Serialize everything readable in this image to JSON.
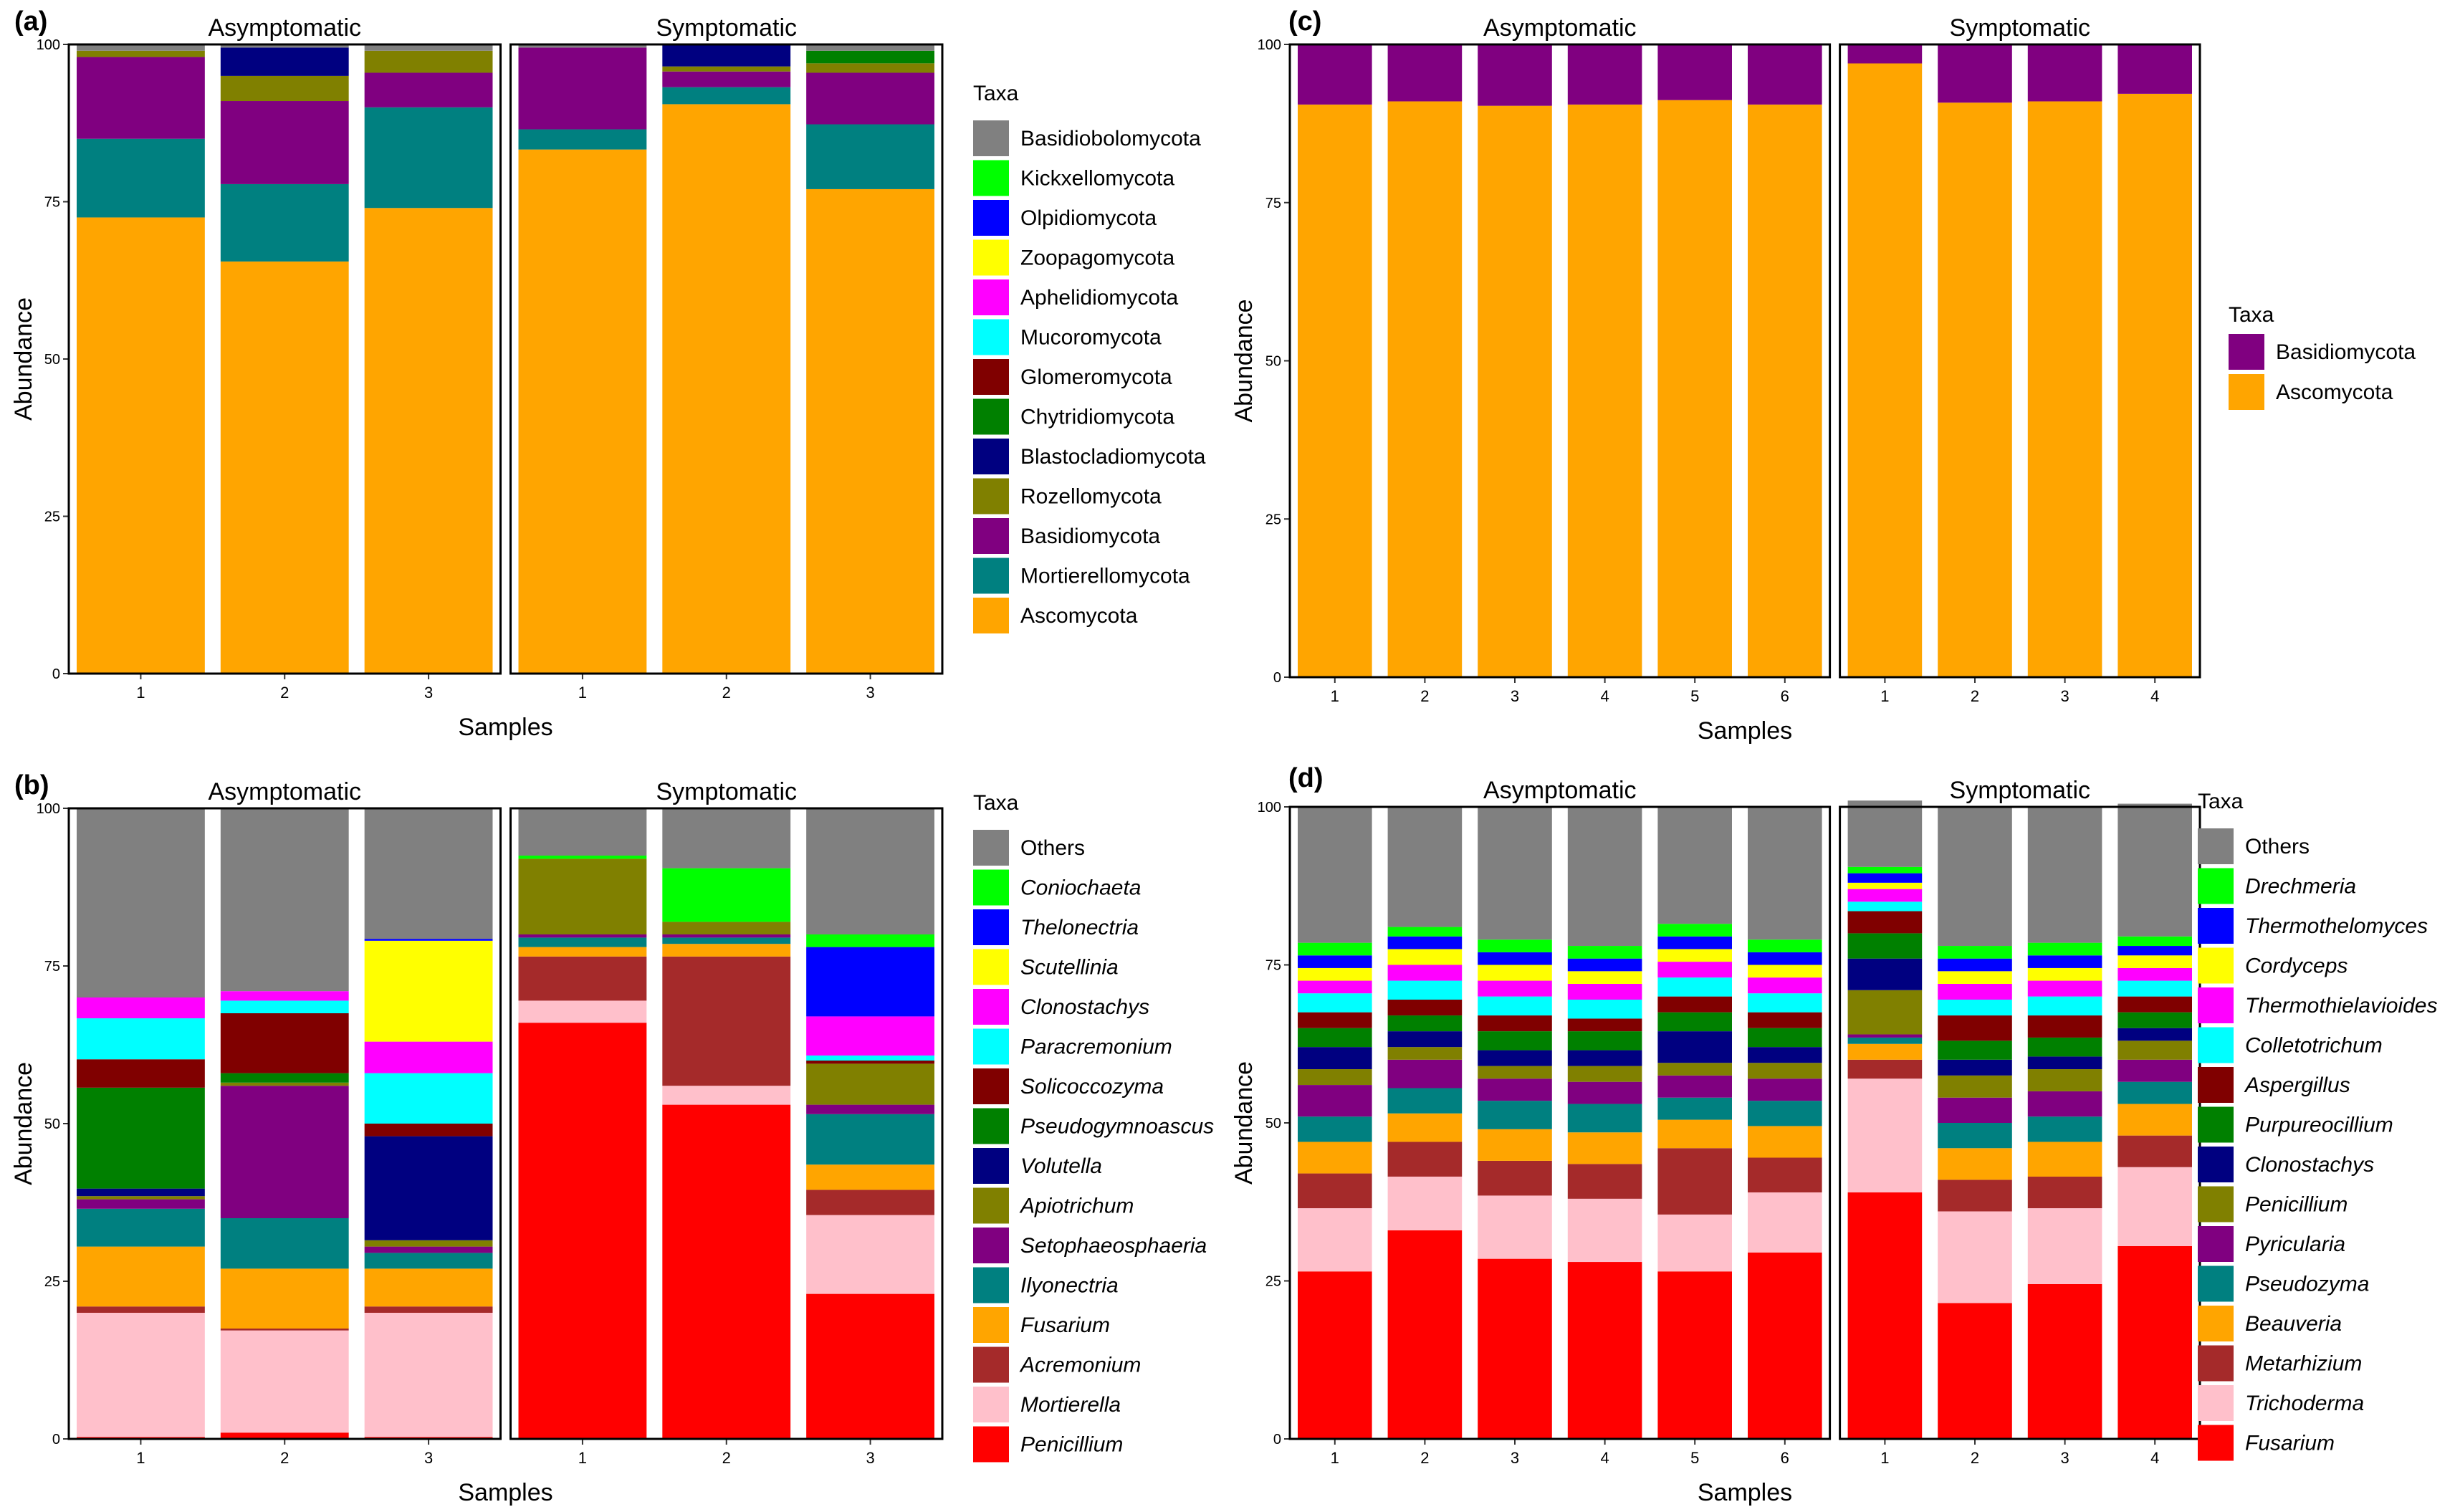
{
  "figure": {
    "colors": {
      "panel_border": "#000000",
      "background": "#ffffff"
    }
  },
  "chart_data": [
    {
      "id": "a",
      "panel_label": "(a)",
      "type": "bar",
      "stacked": true,
      "title": "",
      "xlabel": "Samples",
      "ylabel": "Abundance",
      "ylim": [
        0,
        100
      ],
      "yticks": [
        "0",
        "25",
        "50",
        "75",
        "100"
      ],
      "facets": [
        {
          "title": "Asymptomatic",
          "samples": [
            "1",
            "2",
            "3"
          ]
        },
        {
          "title": "Symptomatic",
          "samples": [
            "1",
            "2",
            "3"
          ]
        }
      ],
      "legend_title": "Taxa",
      "legend_italic": false,
      "legend": [
        {
          "name": "Basidiobolomycota",
          "color": "#808080"
        },
        {
          "name": "Kickxellomycota",
          "color": "#00FF00"
        },
        {
          "name": "Olpidiomycota",
          "color": "#0000FF"
        },
        {
          "name": "Zoopagomycota",
          "color": "#FFFF00"
        },
        {
          "name": "Aphelidiomycota",
          "color": "#FF00FF"
        },
        {
          "name": "Mucoromycota",
          "color": "#00FFFF"
        },
        {
          "name": "Glomeromycota",
          "color": "#800000"
        },
        {
          "name": "Chytridiomycota",
          "color": "#008000"
        },
        {
          "name": "Blastocladiomycota",
          "color": "#000080"
        },
        {
          "name": "Rozellomycota",
          "color": "#808000"
        },
        {
          "name": "Basidiomycota",
          "color": "#800080"
        },
        {
          "name": "Mortierellomycota",
          "color": "#008080"
        },
        {
          "name": "Ascomycota",
          "color": "#FFA500"
        }
      ],
      "stack_order": [
        "Ascomycota",
        "Mortierellomycota",
        "Basidiomycota",
        "Rozellomycota",
        "Blastocladiomycota",
        "Chytridiomycota",
        "Glomeromycota",
        "Mucoromycota",
        "Aphelidiomycota",
        "Zoopagomycota",
        "Olpidiomycota",
        "Kickxellomycota",
        "Basidiobolomycota"
      ],
      "values": [
        [
          {
            "Ascomycota": 72.5,
            "Mortierellomycota": 12.5,
            "Basidiomycota": 13.0,
            "Rozellomycota": 1.0,
            "Basidiobolomycota": 1.0
          },
          {
            "Ascomycota": 65.5,
            "Mortierellomycota": 12.3,
            "Basidiomycota": 13.2,
            "Rozellomycota": 4.0,
            "Blastocladiomycota": 4.5,
            "Basidiobolomycota": 0.5
          },
          {
            "Ascomycota": 74.0,
            "Mortierellomycota": 16.0,
            "Basidiomycota": 5.5,
            "Rozellomycota": 3.5,
            "Basidiobolomycota": 1.0
          }
        ],
        [
          {
            "Ascomycota": 83.3,
            "Mortierellomycota": 3.2,
            "Basidiomycota": 13.0,
            "Basidiobolomycota": 0.5
          },
          {
            "Ascomycota": 90.5,
            "Mortierellomycota": 2.7,
            "Basidiomycota": 2.5,
            "Rozellomycota": 0.8,
            "Blastocladiomycota": 3.5
          },
          {
            "Ascomycota": 77.0,
            "Mortierellomycota": 10.3,
            "Basidiomycota": 8.2,
            "Rozellomycota": 1.5,
            "Chytridiomycota": 2.0,
            "Basidiobolomycota": 1.0
          }
        ]
      ]
    },
    {
      "id": "b",
      "panel_label": "(b)",
      "type": "bar",
      "stacked": true,
      "title": "",
      "xlabel": "Samples",
      "ylabel": "Abundance",
      "ylim": [
        0,
        100
      ],
      "yticks": [
        "0",
        "25",
        "50",
        "75",
        "100"
      ],
      "facets": [
        {
          "title": "Asymptomatic",
          "samples": [
            "1",
            "2",
            "3"
          ]
        },
        {
          "title": "Symptomatic",
          "samples": [
            "1",
            "2",
            "3"
          ]
        }
      ],
      "legend_title": "Taxa",
      "legend_italic": true,
      "legend": [
        {
          "name": "Others",
          "color": "#808080",
          "italic": false
        },
        {
          "name": "Coniochaeta",
          "color": "#00FF00"
        },
        {
          "name": "Thelonectria",
          "color": "#0000FF"
        },
        {
          "name": "Scutellinia",
          "color": "#FFFF00"
        },
        {
          "name": "Clonostachys",
          "color": "#FF00FF"
        },
        {
          "name": "Paracremonium",
          "color": "#00FFFF"
        },
        {
          "name": "Solicoccozyma",
          "color": "#800000"
        },
        {
          "name": "Pseudogymnoascus",
          "color": "#008000"
        },
        {
          "name": "Volutella",
          "color": "#000080"
        },
        {
          "name": "Apiotrichum",
          "color": "#808000"
        },
        {
          "name": "Setophaeosphaeria",
          "color": "#800080"
        },
        {
          "name": "Ilyonectria",
          "color": "#008080"
        },
        {
          "name": "Fusarium",
          "color": "#FFA500"
        },
        {
          "name": "Acremonium",
          "color": "#A52A2A"
        },
        {
          "name": "Mortierella",
          "color": "#FFC0CB"
        },
        {
          "name": "Penicillium",
          "color": "#FF0000"
        }
      ],
      "stack_order": [
        "Penicillium",
        "Mortierella",
        "Acremonium",
        "Fusarium",
        "Ilyonectria",
        "Setophaeosphaeria",
        "Apiotrichum",
        "Volutella",
        "Pseudogymnoascus",
        "Solicoccozyma",
        "Paracremonium",
        "Clonostachys",
        "Scutellinia",
        "Thelonectria",
        "Coniochaeta",
        "Others"
      ],
      "values": [
        [
          {
            "Penicillium": 0.3,
            "Mortierella": 19.7,
            "Acremonium": 1.0,
            "Fusarium": 9.5,
            "Ilyonectria": 6.0,
            "Setophaeosphaeria": 1.5,
            "Apiotrichum": 0.5,
            "Volutella": 1.2,
            "Pseudogymnoascus": 16.0,
            "Solicoccozyma": 4.5,
            "Paracremonium": 6.5,
            "Clonostachys": 3.3,
            "Others": 30.0
          },
          {
            "Penicillium": 1.0,
            "Mortierella": 16.2,
            "Acremonium": 0.3,
            "Fusarium": 9.5,
            "Ilyonectria": 8.0,
            "Setophaeosphaeria": 21.0,
            "Apiotrichum": 0.5,
            "Pseudogymnoascus": 1.5,
            "Solicoccozyma": 9.5,
            "Paracremonium": 2.0,
            "Clonostachys": 1.5,
            "Others": 29.0
          },
          {
            "Penicillium": 0.3,
            "Mortierella": 19.7,
            "Acremonium": 1.0,
            "Fusarium": 6.0,
            "Ilyonectria": 2.5,
            "Setophaeosphaeria": 1.0,
            "Apiotrichum": 1.0,
            "Volutella": 16.5,
            "Solicoccozyma": 2.0,
            "Paracremonium": 8.0,
            "Clonostachys": 5.0,
            "Scutellinia": 16.0,
            "Thelonectria": 0.3,
            "Others": 20.7
          }
        ],
        [
          {
            "Penicillium": 66.0,
            "Mortierella": 3.5,
            "Acremonium": 7.0,
            "Fusarium": 1.5,
            "Ilyonectria": 1.5,
            "Setophaeosphaeria": 0.5,
            "Apiotrichum": 12.0,
            "Coniochaeta": 0.5,
            "Others": 7.5
          },
          {
            "Penicillium": 53.0,
            "Mortierella": 3.0,
            "Acremonium": 20.5,
            "Fusarium": 2.0,
            "Ilyonectria": 1.0,
            "Setophaeosphaeria": 0.5,
            "Apiotrichum": 2.0,
            "Coniochaeta": 8.5,
            "Others": 9.5
          },
          {
            "Penicillium": 23.0,
            "Mortierella": 12.5,
            "Acremonium": 4.0,
            "Fusarium": 4.0,
            "Ilyonectria": 8.0,
            "Setophaeosphaeria": 1.5,
            "Apiotrichum": 6.5,
            "Solicoccozyma": 0.5,
            "Paracremonium": 0.8,
            "Clonostachys": 6.2,
            "Thelonectria": 11.0,
            "Coniochaeta": 2.0,
            "Others": 20.0
          }
        ]
      ]
    },
    {
      "id": "c",
      "panel_label": "(c)",
      "type": "bar",
      "stacked": true,
      "title": "",
      "xlabel": "Samples",
      "ylabel": "Abundance",
      "ylim": [
        0,
        100
      ],
      "yticks": [
        "0",
        "25",
        "50",
        "75",
        "100"
      ],
      "facets": [
        {
          "title": "Asymptomatic",
          "samples": [
            "1",
            "2",
            "3",
            "4",
            "5",
            "6"
          ]
        },
        {
          "title": "Symptomatic",
          "samples": [
            "1",
            "2",
            "3",
            "4"
          ]
        }
      ],
      "legend_title": "Taxa",
      "legend_italic": false,
      "legend": [
        {
          "name": "Basidiomycota",
          "color": "#800080"
        },
        {
          "name": "Ascomycota",
          "color": "#FFA500"
        }
      ],
      "stack_order": [
        "Ascomycota",
        "Basidiomycota"
      ],
      "values": [
        [
          {
            "Ascomycota": 90.5,
            "Basidiomycota": 9.5
          },
          {
            "Ascomycota": 91.0,
            "Basidiomycota": 9.0
          },
          {
            "Ascomycota": 90.3,
            "Basidiomycota": 9.7
          },
          {
            "Ascomycota": 90.5,
            "Basidiomycota": 9.5
          },
          {
            "Ascomycota": 91.2,
            "Basidiomycota": 8.8
          },
          {
            "Ascomycota": 90.5,
            "Basidiomycota": 9.5
          }
        ],
        [
          {
            "Ascomycota": 97.0,
            "Basidiomycota": 3.0
          },
          {
            "Ascomycota": 90.8,
            "Basidiomycota": 9.2
          },
          {
            "Ascomycota": 91.0,
            "Basidiomycota": 9.0
          },
          {
            "Ascomycota": 92.2,
            "Basidiomycota": 7.8
          }
        ]
      ]
    },
    {
      "id": "d",
      "panel_label": "(d)",
      "type": "bar",
      "stacked": true,
      "title": "",
      "xlabel": "Samples",
      "ylabel": "Abundance",
      "ylim": [
        0,
        100
      ],
      "yticks": [
        "0",
        "25",
        "50",
        "75",
        "100"
      ],
      "facets": [
        {
          "title": "Asymptomatic",
          "samples": [
            "1",
            "2",
            "3",
            "4",
            "5",
            "6"
          ]
        },
        {
          "title": "Symptomatic",
          "samples": [
            "1",
            "2",
            "3",
            "4"
          ]
        }
      ],
      "legend_title": "Taxa",
      "legend_italic": true,
      "legend": [
        {
          "name": "Others",
          "color": "#808080",
          "italic": false
        },
        {
          "name": "Drechmeria",
          "color": "#00FF00"
        },
        {
          "name": "Thermothelomyces",
          "color": "#0000FF"
        },
        {
          "name": "Cordyceps",
          "color": "#FFFF00"
        },
        {
          "name": "Thermothielavioides",
          "color": "#FF00FF"
        },
        {
          "name": "Colletotrichum",
          "color": "#00FFFF"
        },
        {
          "name": "Aspergillus",
          "color": "#800000"
        },
        {
          "name": "Purpureocillium",
          "color": "#008000"
        },
        {
          "name": "Clonostachys",
          "color": "#000080"
        },
        {
          "name": "Penicillium",
          "color": "#808000"
        },
        {
          "name": "Pyricularia",
          "color": "#800080"
        },
        {
          "name": "Pseudozyma",
          "color": "#008080"
        },
        {
          "name": "Beauveria",
          "color": "#FFA500"
        },
        {
          "name": "Metarhizium",
          "color": "#A52A2A"
        },
        {
          "name": "Trichoderma",
          "color": "#FFC0CB"
        },
        {
          "name": "Fusarium",
          "color": "#FF0000"
        }
      ],
      "stack_order": [
        "Fusarium",
        "Trichoderma",
        "Metarhizium",
        "Beauveria",
        "Pseudozyma",
        "Pyricularia",
        "Penicillium",
        "Clonostachys",
        "Purpureocillium",
        "Aspergillus",
        "Colletotrichum",
        "Thermothielavioides",
        "Cordyceps",
        "Thermothelomyces",
        "Drechmeria",
        "Others"
      ],
      "values": [
        [
          {
            "Fusarium": 26.5,
            "Trichoderma": 10.0,
            "Metarhizium": 5.5,
            "Beauveria": 5.0,
            "Pseudozyma": 4.0,
            "Pyricularia": 5.0,
            "Penicillium": 2.5,
            "Clonostachys": 3.5,
            "Purpureocillium": 3.0,
            "Aspergillus": 2.5,
            "Colletotrichum": 3.0,
            "Thermothielavioides": 2.0,
            "Cordyceps": 2.0,
            "Thermothelomyces": 2.0,
            "Drechmeria": 2.0,
            "Others": 21.5
          },
          {
            "Fusarium": 33.0,
            "Trichoderma": 8.5,
            "Metarhizium": 5.5,
            "Beauveria": 4.5,
            "Pseudozyma": 4.0,
            "Pyricularia": 4.5,
            "Penicillium": 2.0,
            "Clonostachys": 2.5,
            "Purpureocillium": 2.5,
            "Aspergillus": 2.5,
            "Colletotrichum": 3.0,
            "Thermothielavioides": 2.5,
            "Cordyceps": 2.5,
            "Thermothelomyces": 2.0,
            "Drechmeria": 1.5,
            "Others": 19.0
          },
          {
            "Fusarium": 28.5,
            "Trichoderma": 10.0,
            "Metarhizium": 5.5,
            "Beauveria": 5.0,
            "Pseudozyma": 4.5,
            "Pyricularia": 3.5,
            "Penicillium": 2.0,
            "Clonostachys": 2.5,
            "Purpureocillium": 3.0,
            "Aspergillus": 2.5,
            "Colletotrichum": 3.0,
            "Thermothielavioides": 2.5,
            "Cordyceps": 2.5,
            "Thermothelomyces": 2.0,
            "Drechmeria": 2.0,
            "Others": 21.0
          },
          {
            "Fusarium": 28.0,
            "Trichoderma": 10.0,
            "Metarhizium": 5.5,
            "Beauveria": 5.0,
            "Pseudozyma": 4.5,
            "Pyricularia": 3.5,
            "Penicillium": 2.5,
            "Clonostachys": 2.5,
            "Purpureocillium": 3.0,
            "Aspergillus": 2.0,
            "Colletotrichum": 3.0,
            "Thermothielavioides": 2.5,
            "Cordyceps": 2.0,
            "Thermothelomyces": 2.0,
            "Drechmeria": 2.0,
            "Others": 22.0
          },
          {
            "Fusarium": 26.5,
            "Trichoderma": 9.0,
            "Metarhizium": 10.5,
            "Beauveria": 4.5,
            "Pseudozyma": 3.5,
            "Pyricularia": 3.5,
            "Penicillium": 2.0,
            "Clonostachys": 5.0,
            "Purpureocillium": 3.0,
            "Aspergillus": 2.5,
            "Colletotrichum": 3.0,
            "Thermothielavioides": 2.5,
            "Cordyceps": 2.0,
            "Thermothelomyces": 2.0,
            "Drechmeria": 2.0,
            "Others": 18.5
          },
          {
            "Fusarium": 29.5,
            "Trichoderma": 9.5,
            "Metarhizium": 5.5,
            "Beauveria": 5.0,
            "Pseudozyma": 4.0,
            "Pyricularia": 3.5,
            "Penicillium": 2.5,
            "Clonostachys": 2.5,
            "Purpureocillium": 3.0,
            "Aspergillus": 2.5,
            "Colletotrichum": 3.0,
            "Thermothielavioides": 2.5,
            "Cordyceps": 2.0,
            "Thermothelomyces": 2.0,
            "Drechmeria": 2.0,
            "Others": 21.0
          }
        ],
        [
          {
            "Fusarium": 39.0,
            "Trichoderma": 18.0,
            "Metarhizium": 3.0,
            "Beauveria": 2.5,
            "Pseudozyma": 1.0,
            "Pyricularia": 0.5,
            "Penicillium": 7.0,
            "Clonostachys": 5.0,
            "Purpureocillium": 4.0,
            "Aspergillus": 3.5,
            "Colletotrichum": 1.5,
            "Thermothielavioides": 2.0,
            "Cordyceps": 1.0,
            "Thermothelomyces": 1.5,
            "Drechmeria": 1.0,
            "Others": 10.5
          },
          {
            "Fusarium": 21.5,
            "Trichoderma": 14.5,
            "Metarhizium": 5.0,
            "Beauveria": 5.0,
            "Pseudozyma": 4.0,
            "Pyricularia": 4.0,
            "Penicillium": 3.5,
            "Clonostachys": 2.5,
            "Purpureocillium": 3.0,
            "Aspergillus": 4.0,
            "Colletotrichum": 2.5,
            "Thermothielavioides": 2.5,
            "Cordyceps": 2.0,
            "Thermothelomyces": 2.0,
            "Drechmeria": 2.0,
            "Others": 22.0
          },
          {
            "Fusarium": 24.5,
            "Trichoderma": 12.0,
            "Metarhizium": 5.0,
            "Beauveria": 5.5,
            "Pseudozyma": 4.0,
            "Pyricularia": 4.0,
            "Penicillium": 3.5,
            "Clonostachys": 2.0,
            "Purpureocillium": 3.0,
            "Aspergillus": 3.5,
            "Colletotrichum": 3.0,
            "Thermothielavioides": 2.5,
            "Cordyceps": 2.0,
            "Thermothelomyces": 2.0,
            "Drechmeria": 2.0,
            "Others": 21.5
          },
          {
            "Fusarium": 30.5,
            "Trichoderma": 12.5,
            "Metarhizium": 5.0,
            "Beauveria": 5.0,
            "Pseudozyma": 3.5,
            "Pyricularia": 3.5,
            "Penicillium": 3.0,
            "Clonostachys": 2.0,
            "Purpureocillium": 2.5,
            "Aspergillus": 2.5,
            "Colletotrichum": 2.5,
            "Thermothielavioides": 2.0,
            "Cordyceps": 2.0,
            "Thermothelomyces": 1.5,
            "Drechmeria": 1.5,
            "Others": 21.0
          }
        ]
      ]
    }
  ]
}
